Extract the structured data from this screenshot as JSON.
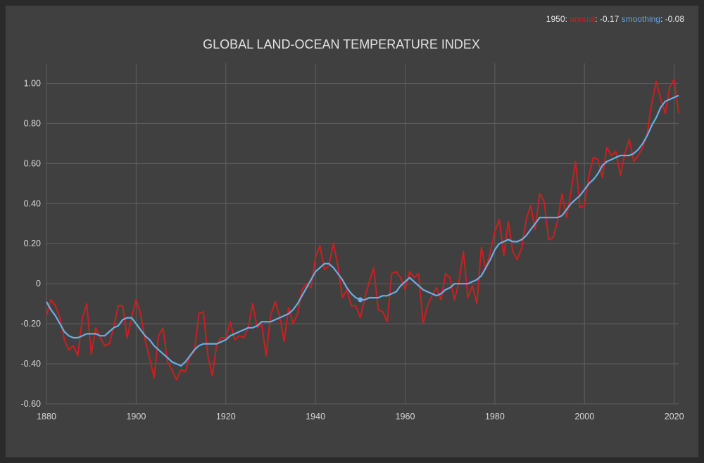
{
  "readout": {
    "year": "1950",
    "annual_label": "annual",
    "annual_value": "-0.17",
    "smooth_label": "smoothing",
    "smooth_value": "-0.08"
  },
  "chart_data": {
    "type": "line",
    "title": "GLOBAL LAND-OCEAN TEMPERATURE INDEX",
    "xlabel": "",
    "ylabel": "",
    "xlim": [
      1880,
      2021
    ],
    "ylim": [
      -0.6,
      1.1
    ],
    "x_ticks": [
      1880,
      1900,
      1920,
      1940,
      1960,
      1980,
      2000,
      2020
    ],
    "y_ticks": [
      -0.6,
      -0.4,
      -0.2,
      0,
      0.2,
      0.4,
      0.6,
      0.8,
      1.0
    ],
    "y_tick_labels": [
      "-0.60",
      "-0.40",
      "-0.20",
      "0",
      "0.20",
      "0.40",
      "0.60",
      "0.80",
      "1.00"
    ],
    "grid": true,
    "colors": {
      "annual": "#cc1f1f",
      "smoothing": "#6aaee6"
    },
    "highlight": {
      "x": 1950,
      "y": -0.08
    },
    "series": [
      {
        "name": "annual",
        "x": [
          1880,
          1881,
          1882,
          1883,
          1884,
          1885,
          1886,
          1887,
          1888,
          1889,
          1890,
          1891,
          1892,
          1893,
          1894,
          1895,
          1896,
          1897,
          1898,
          1899,
          1900,
          1901,
          1902,
          1903,
          1904,
          1905,
          1906,
          1907,
          1908,
          1909,
          1910,
          1911,
          1912,
          1913,
          1914,
          1915,
          1916,
          1917,
          1918,
          1919,
          1920,
          1921,
          1922,
          1923,
          1924,
          1925,
          1926,
          1927,
          1928,
          1929,
          1930,
          1931,
          1932,
          1933,
          1934,
          1935,
          1936,
          1937,
          1938,
          1939,
          1940,
          1941,
          1942,
          1943,
          1944,
          1945,
          1946,
          1947,
          1948,
          1949,
          1950,
          1951,
          1952,
          1953,
          1954,
          1955,
          1956,
          1957,
          1958,
          1959,
          1960,
          1961,
          1962,
          1963,
          1964,
          1965,
          1966,
          1967,
          1968,
          1969,
          1970,
          1971,
          1972,
          1973,
          1974,
          1975,
          1976,
          1977,
          1978,
          1979,
          1980,
          1981,
          1982,
          1983,
          1984,
          1985,
          1986,
          1987,
          1988,
          1989,
          1990,
          1991,
          1992,
          1993,
          1994,
          1995,
          1996,
          1997,
          1998,
          1999,
          2000,
          2001,
          2002,
          2003,
          2004,
          2005,
          2006,
          2007,
          2008,
          2009,
          2010,
          2011,
          2012,
          2013,
          2014,
          2015,
          2016,
          2017,
          2018,
          2019,
          2020,
          2021
        ],
        "values": [
          -0.16,
          -0.08,
          -0.11,
          -0.17,
          -0.28,
          -0.33,
          -0.31,
          -0.36,
          -0.17,
          -0.1,
          -0.35,
          -0.22,
          -0.27,
          -0.31,
          -0.3,
          -0.22,
          -0.11,
          -0.11,
          -0.27,
          -0.17,
          -0.08,
          -0.15,
          -0.28,
          -0.37,
          -0.47,
          -0.26,
          -0.22,
          -0.39,
          -0.43,
          -0.48,
          -0.43,
          -0.44,
          -0.36,
          -0.34,
          -0.15,
          -0.14,
          -0.36,
          -0.46,
          -0.3,
          -0.27,
          -0.27,
          -0.19,
          -0.28,
          -0.26,
          -0.27,
          -0.22,
          -0.1,
          -0.22,
          -0.2,
          -0.36,
          -0.16,
          -0.09,
          -0.16,
          -0.29,
          -0.12,
          -0.2,
          -0.15,
          -0.03,
          0.0,
          -0.02,
          0.13,
          0.19,
          0.07,
          0.09,
          0.2,
          0.09,
          -0.07,
          -0.03,
          -0.11,
          -0.11,
          -0.17,
          -0.07,
          0.01,
          0.08,
          -0.13,
          -0.14,
          -0.19,
          0.05,
          0.06,
          0.03,
          -0.03,
          0.06,
          0.03,
          0.05,
          -0.2,
          -0.11,
          -0.06,
          -0.02,
          -0.08,
          0.05,
          0.03,
          -0.08,
          0.01,
          0.16,
          -0.07,
          -0.01,
          -0.1,
          0.18,
          0.07,
          0.16,
          0.26,
          0.32,
          0.14,
          0.31,
          0.16,
          0.12,
          0.18,
          0.32,
          0.39,
          0.27,
          0.45,
          0.41,
          0.22,
          0.23,
          0.31,
          0.45,
          0.33,
          0.46,
          0.61,
          0.38,
          0.39,
          0.54,
          0.63,
          0.62,
          0.53,
          0.68,
          0.64,
          0.66,
          0.54,
          0.65,
          0.72,
          0.61,
          0.64,
          0.68,
          0.75,
          0.9,
          1.01,
          0.92,
          0.85,
          0.98,
          1.02,
          0.85
        ]
      },
      {
        "name": "smoothing",
        "x": [
          1880,
          1881,
          1882,
          1883,
          1884,
          1885,
          1886,
          1887,
          1888,
          1889,
          1890,
          1891,
          1892,
          1893,
          1894,
          1895,
          1896,
          1897,
          1898,
          1899,
          1900,
          1901,
          1902,
          1903,
          1904,
          1905,
          1906,
          1907,
          1908,
          1909,
          1910,
          1911,
          1912,
          1913,
          1914,
          1915,
          1916,
          1917,
          1918,
          1919,
          1920,
          1921,
          1922,
          1923,
          1924,
          1925,
          1926,
          1927,
          1928,
          1929,
          1930,
          1931,
          1932,
          1933,
          1934,
          1935,
          1936,
          1937,
          1938,
          1939,
          1940,
          1941,
          1942,
          1943,
          1944,
          1945,
          1946,
          1947,
          1948,
          1949,
          1950,
          1951,
          1952,
          1953,
          1954,
          1955,
          1956,
          1957,
          1958,
          1959,
          1960,
          1961,
          1962,
          1963,
          1964,
          1965,
          1966,
          1967,
          1968,
          1969,
          1970,
          1971,
          1972,
          1973,
          1974,
          1975,
          1976,
          1977,
          1978,
          1979,
          1980,
          1981,
          1982,
          1983,
          1984,
          1985,
          1986,
          1987,
          1988,
          1989,
          1990,
          1991,
          1992,
          1993,
          1994,
          1995,
          1996,
          1997,
          1998,
          1999,
          2000,
          2001,
          2002,
          2003,
          2004,
          2005,
          2006,
          2007,
          2008,
          2009,
          2010,
          2011,
          2012,
          2013,
          2014,
          2015,
          2016,
          2017,
          2018,
          2019,
          2020,
          2021
        ],
        "values": [
          -0.09,
          -0.13,
          -0.16,
          -0.2,
          -0.24,
          -0.26,
          -0.27,
          -0.27,
          -0.26,
          -0.25,
          -0.25,
          -0.25,
          -0.26,
          -0.26,
          -0.24,
          -0.22,
          -0.21,
          -0.18,
          -0.17,
          -0.17,
          -0.2,
          -0.23,
          -0.26,
          -0.28,
          -0.31,
          -0.33,
          -0.35,
          -0.37,
          -0.39,
          -0.4,
          -0.41,
          -0.39,
          -0.36,
          -0.33,
          -0.31,
          -0.3,
          -0.3,
          -0.3,
          -0.3,
          -0.29,
          -0.28,
          -0.26,
          -0.25,
          -0.24,
          -0.23,
          -0.22,
          -0.22,
          -0.21,
          -0.19,
          -0.19,
          -0.19,
          -0.18,
          -0.17,
          -0.16,
          -0.15,
          -0.13,
          -0.1,
          -0.06,
          -0.02,
          0.02,
          0.06,
          0.08,
          0.1,
          0.1,
          0.08,
          0.05,
          0.02,
          -0.02,
          -0.05,
          -0.07,
          -0.08,
          -0.08,
          -0.07,
          -0.07,
          -0.07,
          -0.06,
          -0.06,
          -0.05,
          -0.04,
          -0.01,
          0.01,
          0.03,
          0.01,
          -0.01,
          -0.03,
          -0.04,
          -0.05,
          -0.06,
          -0.05,
          -0.03,
          -0.02,
          0.0,
          0.0,
          0.0,
          0.0,
          0.01,
          0.02,
          0.04,
          0.08,
          0.12,
          0.17,
          0.2,
          0.21,
          0.22,
          0.21,
          0.21,
          0.22,
          0.24,
          0.27,
          0.3,
          0.33,
          0.33,
          0.33,
          0.33,
          0.33,
          0.34,
          0.37,
          0.4,
          0.42,
          0.44,
          0.47,
          0.5,
          0.52,
          0.55,
          0.59,
          0.61,
          0.62,
          0.63,
          0.64,
          0.64,
          0.64,
          0.65,
          0.67,
          0.7,
          0.74,
          0.79,
          0.83,
          0.88,
          0.91,
          0.92,
          0.93,
          0.94
        ]
      }
    ]
  }
}
